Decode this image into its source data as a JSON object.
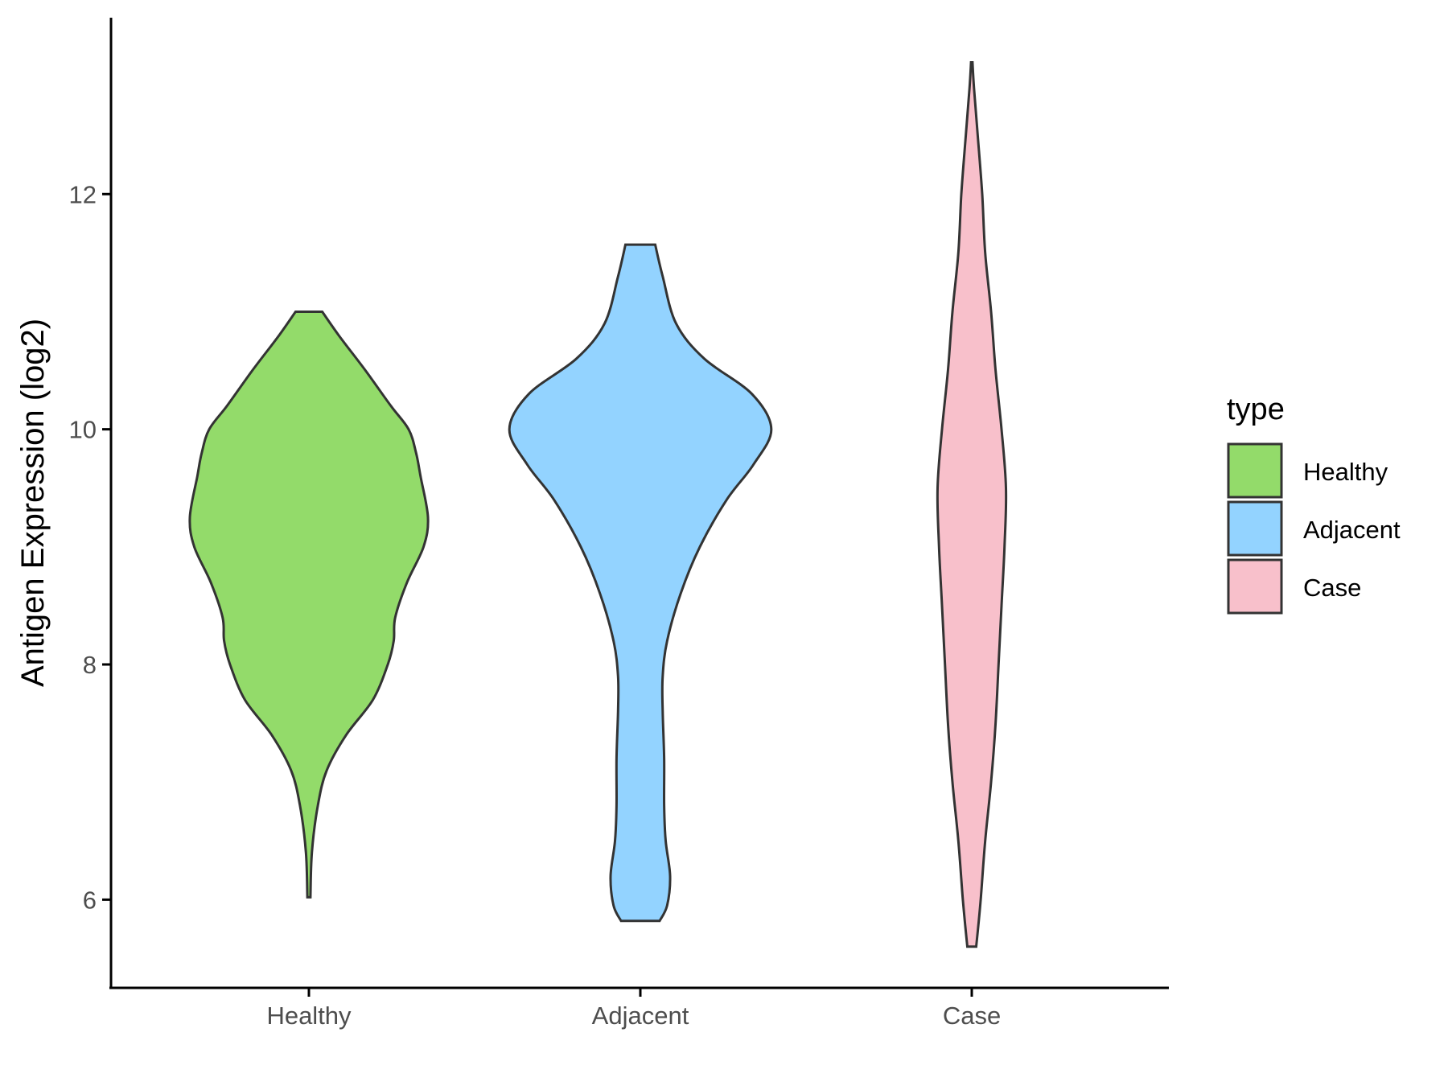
{
  "chart_data": {
    "type": "violin",
    "ylabel": "Antigen Expression (log2)",
    "xlabel": "",
    "categories": [
      "Healthy",
      "Adjacent",
      "Case"
    ],
    "ylim": [
      5.25,
      13.5
    ],
    "yticks": [
      6,
      8,
      10,
      12
    ],
    "yticklabels": [
      "6",
      "8",
      "10",
      "12"
    ],
    "grid": false,
    "legend": {
      "title": "type",
      "position": "right",
      "entries": [
        {
          "label": "Healthy",
          "color": "#93DB6A"
        },
        {
          "label": "Adjacent",
          "color": "#93D3FF"
        },
        {
          "label": "Case",
          "color": "#F8C0CB"
        }
      ]
    },
    "series": [
      {
        "category": "Healthy",
        "color": "#93DB6A",
        "min": 6.02,
        "max": 11.0,
        "density": [
          [
            6.02,
            0.01
          ],
          [
            6.4,
            0.02
          ],
          [
            6.8,
            0.06
          ],
          [
            7.1,
            0.12
          ],
          [
            7.4,
            0.25
          ],
          [
            7.7,
            0.43
          ],
          [
            8.0,
            0.53
          ],
          [
            8.2,
            0.57
          ],
          [
            8.4,
            0.58
          ],
          [
            8.7,
            0.66
          ],
          [
            9.0,
            0.77
          ],
          [
            9.25,
            0.8
          ],
          [
            9.6,
            0.75
          ],
          [
            9.8,
            0.72
          ],
          [
            10.0,
            0.67
          ],
          [
            10.2,
            0.55
          ],
          [
            10.5,
            0.38
          ],
          [
            10.8,
            0.2
          ],
          [
            11.0,
            0.09
          ]
        ]
      },
      {
        "category": "Adjacent",
        "color": "#93D3FF",
        "min": 5.82,
        "max": 11.57,
        "density": [
          [
            5.82,
            0.13
          ],
          [
            5.95,
            0.18
          ],
          [
            6.2,
            0.2
          ],
          [
            6.5,
            0.17
          ],
          [
            6.8,
            0.16
          ],
          [
            7.2,
            0.16
          ],
          [
            7.6,
            0.15
          ],
          [
            7.9,
            0.15
          ],
          [
            8.2,
            0.18
          ],
          [
            8.6,
            0.27
          ],
          [
            9.0,
            0.4
          ],
          [
            9.4,
            0.58
          ],
          [
            9.7,
            0.76
          ],
          [
            10.0,
            0.88
          ],
          [
            10.3,
            0.75
          ],
          [
            10.6,
            0.43
          ],
          [
            10.9,
            0.24
          ],
          [
            11.3,
            0.15
          ],
          [
            11.57,
            0.1
          ]
        ]
      },
      {
        "category": "Case",
        "color": "#F8C0CB",
        "min": 5.6,
        "max": 13.12,
        "density": [
          [
            5.6,
            0.03
          ],
          [
            6.0,
            0.06
          ],
          [
            6.5,
            0.09
          ],
          [
            7.0,
            0.13
          ],
          [
            7.5,
            0.16
          ],
          [
            8.0,
            0.18
          ],
          [
            8.5,
            0.2
          ],
          [
            9.0,
            0.22
          ],
          [
            9.5,
            0.23
          ],
          [
            10.0,
            0.2
          ],
          [
            10.5,
            0.16
          ],
          [
            11.0,
            0.13
          ],
          [
            11.5,
            0.09
          ],
          [
            12.0,
            0.07
          ],
          [
            12.5,
            0.04
          ],
          [
            12.9,
            0.015
          ],
          [
            13.12,
            0.005
          ]
        ]
      }
    ]
  }
}
